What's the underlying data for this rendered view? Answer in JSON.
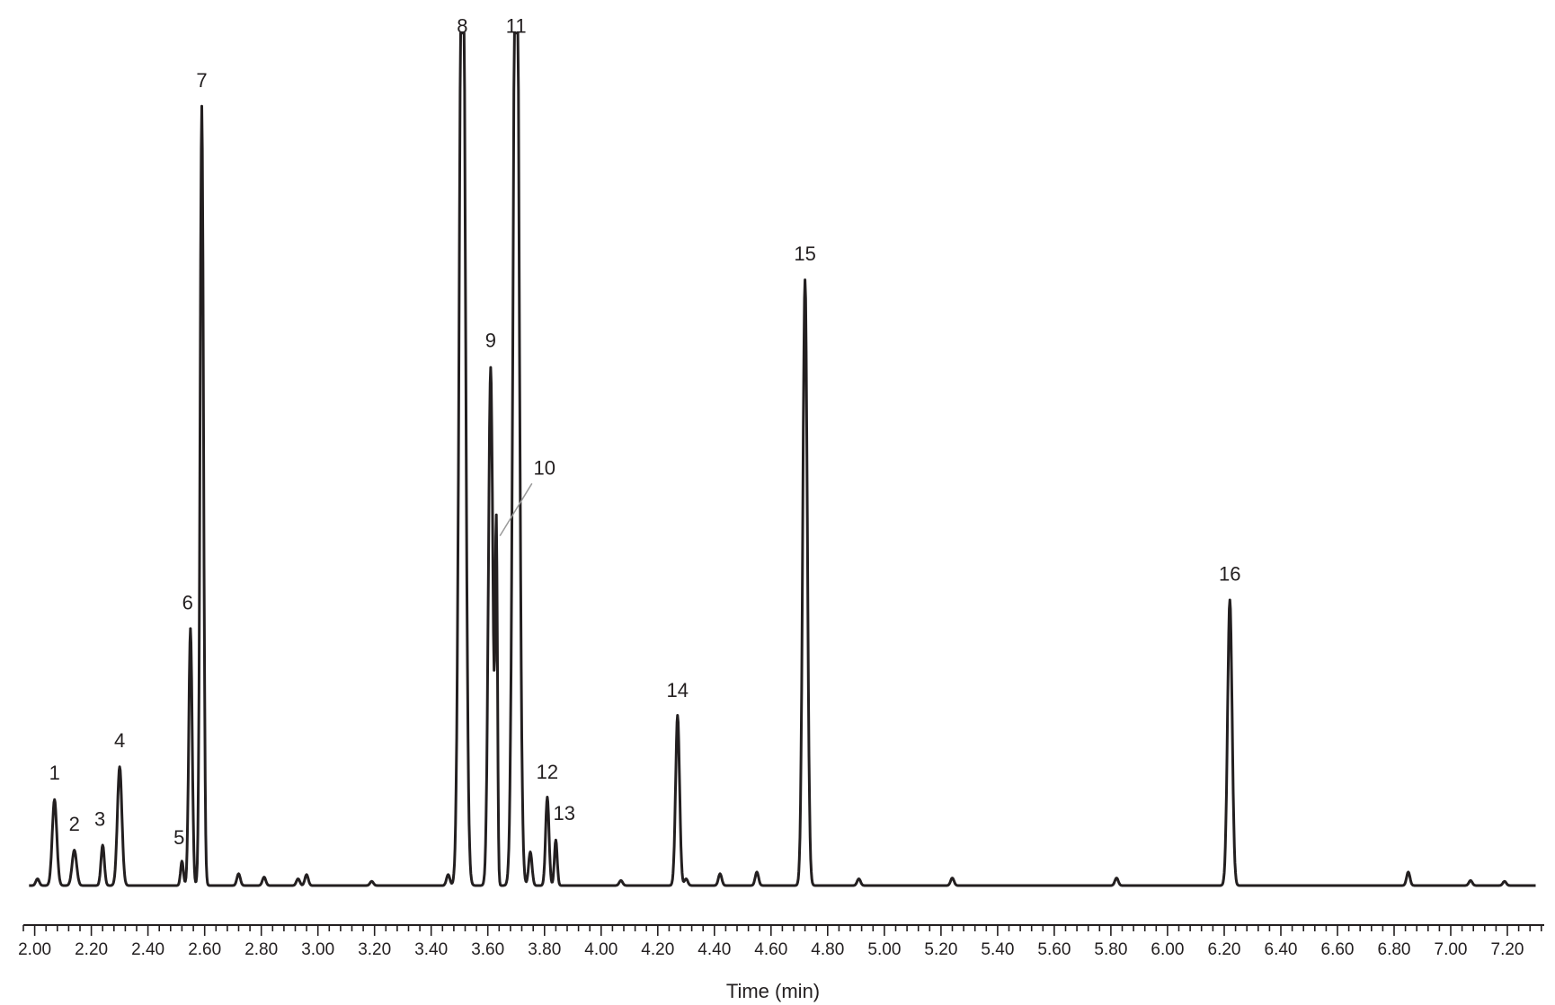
{
  "chart_data": {
    "type": "line",
    "title": "",
    "xlabel": "Time (min)",
    "ylabel": "",
    "xlim": [
      1.96,
      7.33
    ],
    "ylim": [
      0,
      100
    ],
    "grid": false,
    "legend": "none",
    "line_color": "#231f20",
    "x_tick_labels": [
      "2.00",
      "2.20",
      "2.40",
      "2.60",
      "2.80",
      "3.00",
      "3.20",
      "3.40",
      "3.60",
      "3.80",
      "4.00",
      "4.20",
      "4.40",
      "4.60",
      "4.80",
      "5.00",
      "5.20",
      "5.40",
      "5.60",
      "5.80",
      "6.00",
      "6.20",
      "6.40",
      "6.60",
      "6.80",
      "7.00",
      "7.20"
    ],
    "x_tick_values": [
      2.0,
      2.2,
      2.4,
      2.6,
      2.8,
      3.0,
      3.2,
      3.4,
      3.6,
      3.8,
      4.0,
      4.2,
      4.4,
      4.6,
      4.8,
      5.0,
      5.2,
      5.4,
      5.6,
      5.8,
      6.0,
      6.2,
      6.4,
      6.6,
      6.8,
      7.0,
      7.2
    ],
    "peaks": [
      {
        "label": "1",
        "rt": 2.07,
        "height": 10.2,
        "width": 0.008
      },
      {
        "label": "2",
        "rt": 2.14,
        "height": 4.2,
        "width": 0.008
      },
      {
        "label": "3",
        "rt": 2.24,
        "height": 4.8,
        "width": 0.006
      },
      {
        "label": "4",
        "rt": 2.3,
        "height": 14.1,
        "width": 0.008
      },
      {
        "label": "5",
        "rt": 2.52,
        "height": 2.9,
        "width": 0.005
      },
      {
        "label": "6",
        "rt": 2.55,
        "height": 30.5,
        "width": 0.006
      },
      {
        "label": "7",
        "rt": 2.59,
        "height": 92.5,
        "width": 0.006
      },
      {
        "label": "8",
        "rt": 3.51,
        "height": 130.0,
        "width": 0.01
      },
      {
        "label": "9",
        "rt": 3.61,
        "height": 61.5,
        "width": 0.008
      },
      {
        "label": "10",
        "rt": 3.63,
        "height": 41.3,
        "width": 0.004
      },
      {
        "label": "11",
        "rt": 3.7,
        "height": 130.0,
        "width": 0.01
      },
      {
        "label": "12",
        "rt": 3.81,
        "height": 10.5,
        "width": 0.006
      },
      {
        "label": "13",
        "rt": 3.84,
        "height": 5.4,
        "width": 0.005
      },
      {
        "label": "14",
        "rt": 4.27,
        "height": 20.2,
        "width": 0.007
      },
      {
        "label": "15",
        "rt": 4.72,
        "height": 71.9,
        "width": 0.008
      },
      {
        "label": "16",
        "rt": 6.22,
        "height": 33.9,
        "width": 0.008
      }
    ],
    "minor_peaks": [
      {
        "rt": 2.01,
        "height": 0.8
      },
      {
        "rt": 2.72,
        "height": 1.4
      },
      {
        "rt": 2.81,
        "height": 1.0
      },
      {
        "rt": 2.93,
        "height": 0.8
      },
      {
        "rt": 2.96,
        "height": 1.3
      },
      {
        "rt": 3.19,
        "height": 0.5
      },
      {
        "rt": 3.46,
        "height": 1.3
      },
      {
        "rt": 3.75,
        "height": 4.0
      },
      {
        "rt": 4.07,
        "height": 0.6
      },
      {
        "rt": 4.3,
        "height": 0.8
      },
      {
        "rt": 4.42,
        "height": 1.4
      },
      {
        "rt": 4.55,
        "height": 1.6
      },
      {
        "rt": 4.91,
        "height": 0.8
      },
      {
        "rt": 5.24,
        "height": 0.9
      },
      {
        "rt": 5.82,
        "height": 0.9
      },
      {
        "rt": 6.85,
        "height": 1.6
      },
      {
        "rt": 7.07,
        "height": 0.6
      },
      {
        "rt": 7.19,
        "height": 0.5
      }
    ],
    "peak_label_positions": {
      "1": {
        "rt": 2.07,
        "y": 12.6
      },
      "2": {
        "rt": 2.14,
        "y": 6.5
      },
      "3": {
        "rt": 2.23,
        "y": 7.1
      },
      "4": {
        "rt": 2.3,
        "y": 16.4
      },
      "5": {
        "rt": 2.51,
        "y": 4.9
      },
      "6": {
        "rt": 2.54,
        "y": 32.8
      },
      "7": {
        "rt": 2.59,
        "y": 94.8
      },
      "8": {
        "rt": 3.51,
        "y": 101.2
      },
      "9": {
        "rt": 3.61,
        "y": 63.9
      },
      "10": {
        "rt": 3.8,
        "y": 48.8
      },
      "11": {
        "rt": 3.7,
        "y": 101.2
      },
      "12": {
        "rt": 3.81,
        "y": 12.7
      },
      "13": {
        "rt": 3.87,
        "y": 7.8
      },
      "14": {
        "rt": 4.27,
        "y": 22.4
      },
      "15": {
        "rt": 4.72,
        "y": 74.2
      },
      "16": {
        "rt": 6.22,
        "y": 36.2
      }
    }
  }
}
